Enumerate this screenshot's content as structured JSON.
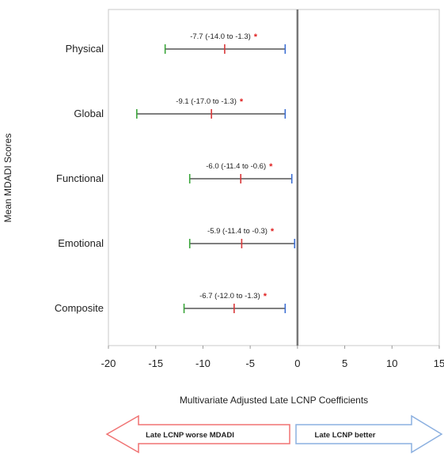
{
  "chart_data": {
    "type": "forest",
    "ylabel": "Mean MDADI Scores",
    "xlabel": "Multivariate Adjusted Late LCNP Coefficients",
    "xlim": [
      -20,
      15
    ],
    "x_ticks": [
      "-20",
      "-15",
      "-10",
      "-5",
      "0",
      "5",
      "10",
      "15"
    ],
    "reference_line": 0,
    "colors": {
      "lower": "#3aa63a",
      "estimate": "#d9383a",
      "upper": "#3d6fd4",
      "line": "#333333",
      "star": "#e02020",
      "worse_arrow": "#f07272",
      "better_arrow": "#8cb0e0"
    },
    "rows": [
      {
        "label": "Physical",
        "estimate": -7.7,
        "lower": -14.0,
        "upper": -1.3,
        "annotation": "-7.7 (-14.0 to -1.3)",
        "star": "*"
      },
      {
        "label": "Global",
        "estimate": -9.1,
        "lower": -17.0,
        "upper": -1.3,
        "annotation": "-9.1 (-17.0 to -1.3)",
        "star": "*"
      },
      {
        "label": "Functional",
        "estimate": -6.0,
        "lower": -11.4,
        "upper": -0.6,
        "annotation": "-6.0 (-11.4 to -0.6)",
        "star": "*"
      },
      {
        "label": "Emotional",
        "estimate": -5.9,
        "lower": -11.4,
        "upper": -0.3,
        "annotation": "-5.9 (-11.4 to -0.3)",
        "star": "*"
      },
      {
        "label": "Composite",
        "estimate": -6.7,
        "lower": -12.0,
        "upper": -1.3,
        "annotation": "-6.7 (-12.0 to -1.3)",
        "star": "*"
      }
    ],
    "arrows": {
      "worse": "Late LCNP worse MDADI",
      "better": "Late LCNP better"
    }
  }
}
